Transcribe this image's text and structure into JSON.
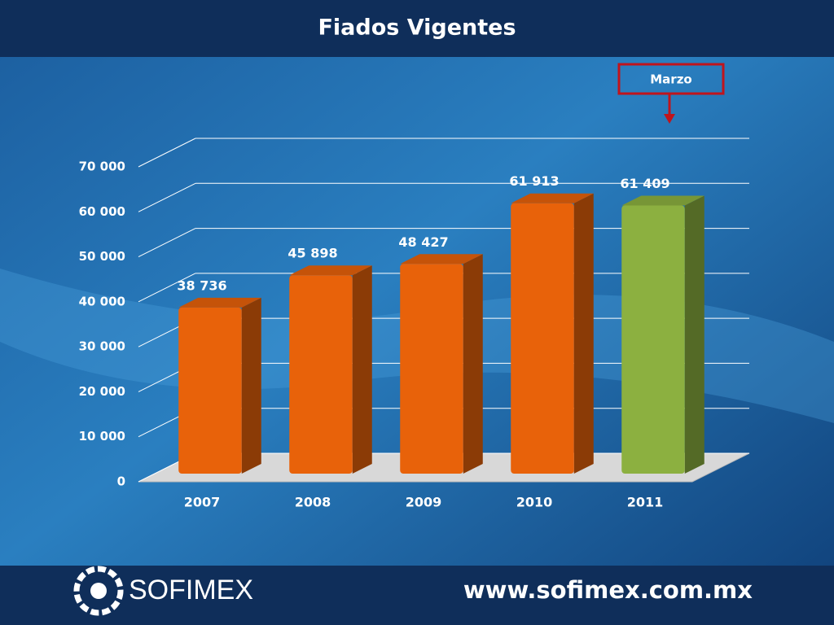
{
  "chart_data": {
    "type": "bar3d",
    "title": "Fiados Vigentes",
    "categories": [
      "2007",
      "2008",
      "2009",
      "2010",
      "2011"
    ],
    "values": [
      38736,
      45898,
      48427,
      61913,
      61409
    ],
    "value_labels": [
      "38 736",
      "45 898",
      "48 427",
      "61 913",
      "61 409"
    ],
    "colors": [
      "#e8620a",
      "#e8620a",
      "#e8620a",
      "#e8620a",
      "#8cb040"
    ],
    "ylim": [
      0,
      70000
    ],
    "yticks": [
      0,
      {
        "value": 10000,
        "label": "10 000"
      },
      {
        "value": 20000,
        "label": "20 000"
      },
      {
        "value": 30000,
        "label": "30 000"
      },
      {
        "value": 40000,
        "label": "40 000"
      },
      {
        "value": 50000,
        "label": "50 000"
      },
      {
        "value": 60000,
        "label": "60 000"
      },
      {
        "value": 70000,
        "label": "70 000"
      }
    ],
    "grid": true,
    "annotation": "Marzo"
  },
  "footer": {
    "brand": "SOFIMEX",
    "url": "www.sofimex.com.mx"
  }
}
